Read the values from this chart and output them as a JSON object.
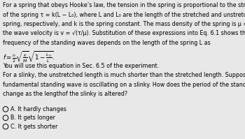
{
  "background_color": "#e8e8e8",
  "text_color": "#000000",
  "font_size": 5.8,
  "title_lines": [
    "For a spring that obeys Hooke’s law, the tension in the spring is proportional to the stretched length",
    "of the spring τ = k(L − L₀), where L and L₀ are the length of the stretched and unstretched",
    "spring, respectively, and k is the spring constant. The mass density of the spring is μ = M/L and",
    "the wave velocity is v = √(τ/μ). Substitution of these expressions into Eq. 6.1 shows that the",
    "frequency of the standing waves depends on the length of the spring L as"
  ],
  "sec_line": "You will use this equation in Sec. 6.5 of the experiment.",
  "slinky_lines": [
    "For a slinky, the unstretched length is much shorter than the stretched length. Suppose that the",
    "fundamental standing wave is oscillating on a slinky. How does the period of the standing wave",
    "change as the lengthof the slinky is altered?"
  ],
  "options": [
    "A. It hardly changes",
    "B. It gets longer",
    "C. It gets shorter"
  ]
}
